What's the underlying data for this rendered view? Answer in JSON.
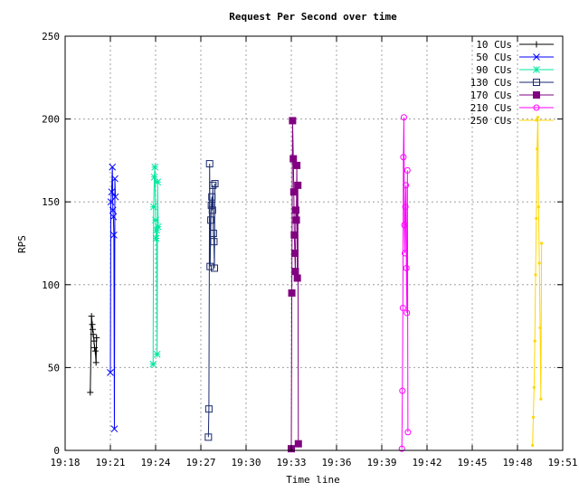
{
  "chart_data": {
    "type": "scatter",
    "title": "Request Per Second over time",
    "xlabel": "Time line",
    "ylabel": "RPS",
    "x_ticks": [
      "19:18",
      "19:21",
      "19:24",
      "19:27",
      "19:30",
      "19:33",
      "19:36",
      "19:39",
      "19:42",
      "19:45",
      "19:48",
      "19:51"
    ],
    "xlim": [
      "19:18",
      "19:51"
    ],
    "ylim": [
      0,
      250
    ],
    "y_ticks": [
      0,
      50,
      100,
      150,
      200,
      250
    ],
    "grid": true,
    "legend_position": "top-right",
    "series": [
      {
        "name": "10 CUs",
        "color": "#000000",
        "marker": "plus",
        "points": [
          [
            "19:19:40",
            35
          ],
          [
            "19:19:45",
            81
          ],
          [
            "19:19:48",
            76
          ],
          [
            "19:19:50",
            73
          ],
          [
            "19:19:52",
            70
          ],
          [
            "19:19:55",
            66
          ],
          [
            "19:19:57",
            62
          ],
          [
            "19:20:00",
            60
          ],
          [
            "19:20:03",
            53
          ],
          [
            "19:20:05",
            68
          ]
        ]
      },
      {
        "name": "50 CUs",
        "color": "#0000ff",
        "marker": "x",
        "points": [
          [
            "19:21:00",
            47
          ],
          [
            "19:21:02",
            150
          ],
          [
            "19:21:05",
            156
          ],
          [
            "19:21:08",
            171
          ],
          [
            "19:21:10",
            145
          ],
          [
            "19:21:12",
            141
          ],
          [
            "19:21:14",
            130
          ],
          [
            "19:21:16",
            13
          ],
          [
            "19:21:18",
            164
          ],
          [
            "19:21:20",
            153
          ]
        ]
      },
      {
        "name": "90 CUs",
        "color": "#00e8a0",
        "marker": "star",
        "points": [
          [
            "19:23:50",
            52
          ],
          [
            "19:23:52",
            147
          ],
          [
            "19:23:55",
            165
          ],
          [
            "19:23:57",
            171
          ],
          [
            "19:24:00",
            139
          ],
          [
            "19:24:02",
            128
          ],
          [
            "19:24:04",
            133
          ],
          [
            "19:24:06",
            58
          ],
          [
            "19:24:08",
            162
          ],
          [
            "19:24:10",
            135
          ]
        ]
      },
      {
        "name": "130 CUs",
        "color": "#1a2a6e",
        "marker": "square",
        "points": [
          [
            "19:27:30",
            8
          ],
          [
            "19:27:32",
            25
          ],
          [
            "19:27:35",
            173
          ],
          [
            "19:27:37",
            111
          ],
          [
            "19:27:40",
            139
          ],
          [
            "19:27:42",
            148
          ],
          [
            "19:27:44",
            153
          ],
          [
            "19:27:46",
            145
          ],
          [
            "19:27:48",
            160
          ],
          [
            "19:27:50",
            131
          ],
          [
            "19:27:52",
            126
          ],
          [
            "19:27:54",
            110
          ],
          [
            "19:27:56",
            161
          ]
        ]
      },
      {
        "name": "170 CUs",
        "color": "#800080",
        "marker": "filled-square",
        "points": [
          [
            "19:33:00",
            1
          ],
          [
            "19:33:02",
            95
          ],
          [
            "19:33:05",
            199
          ],
          [
            "19:33:08",
            176
          ],
          [
            "19:33:10",
            156
          ],
          [
            "19:33:12",
            130
          ],
          [
            "19:33:14",
            119
          ],
          [
            "19:33:16",
            108
          ],
          [
            "19:33:18",
            145
          ],
          [
            "19:33:20",
            139
          ],
          [
            "19:33:22",
            172
          ],
          [
            "19:33:24",
            104
          ],
          [
            "19:33:26",
            160
          ],
          [
            "19:33:28",
            4
          ]
        ]
      },
      {
        "name": "210 CUs",
        "color": "#ff00ff",
        "marker": "circle",
        "points": [
          [
            "19:40:20",
            1
          ],
          [
            "19:40:22",
            36
          ],
          [
            "19:40:24",
            86
          ],
          [
            "19:40:26",
            177
          ],
          [
            "19:40:28",
            201
          ],
          [
            "19:40:30",
            136
          ],
          [
            "19:40:32",
            119
          ],
          [
            "19:40:34",
            147
          ],
          [
            "19:40:36",
            160
          ],
          [
            "19:40:38",
            110
          ],
          [
            "19:40:40",
            83
          ],
          [
            "19:40:42",
            169
          ],
          [
            "19:40:44",
            11
          ]
        ]
      },
      {
        "name": "250 CUs",
        "color": "#ffd700",
        "marker": "line",
        "points": [
          [
            "19:49:00",
            3
          ],
          [
            "19:49:03",
            20
          ],
          [
            "19:49:06",
            38
          ],
          [
            "19:49:09",
            66
          ],
          [
            "19:49:12",
            106
          ],
          [
            "19:49:15",
            140
          ],
          [
            "19:49:18",
            182
          ],
          [
            "19:49:21",
            201
          ],
          [
            "19:49:24",
            147
          ],
          [
            "19:49:27",
            113
          ],
          [
            "19:49:30",
            74
          ],
          [
            "19:49:33",
            31
          ],
          [
            "19:49:36",
            125
          ]
        ]
      }
    ]
  }
}
